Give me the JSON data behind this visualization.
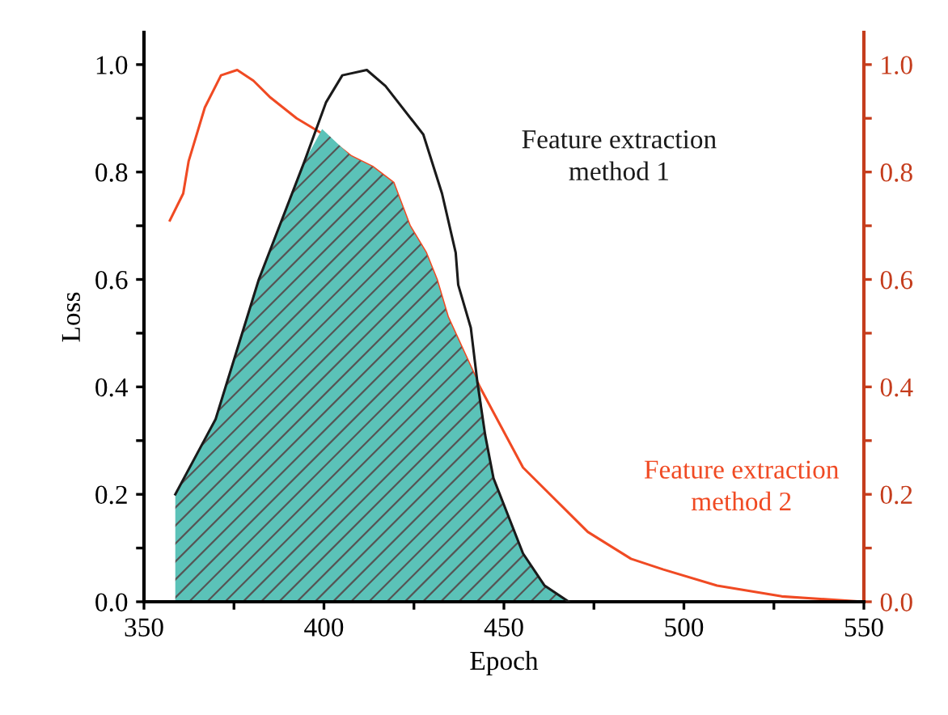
{
  "chart_data": {
    "type": "line",
    "xlabel": "Epoch",
    "ylabel": "Loss",
    "xlim": [
      350,
      550
    ],
    "xticks": [
      350,
      {
        "value": 375,
        "label": null
      },
      400,
      {
        "value": 425,
        "label": null
      },
      450,
      {
        "value": 475,
        "label": null
      },
      500,
      {
        "value": 525,
        "label": null
      },
      550
    ],
    "ylim": [
      0,
      1.06
    ],
    "yticks": [
      {
        "value": 0,
        "label": "0.0"
      },
      {
        "value": 0.1,
        "label": null
      },
      {
        "value": 0.2,
        "label": "0.2"
      },
      {
        "value": 0.3,
        "label": null
      },
      {
        "value": 0.4,
        "label": "0.4"
      },
      {
        "value": 0.5,
        "label": null
      },
      {
        "value": 0.6,
        "label": "0.6"
      },
      {
        "value": 0.7,
        "label": null
      },
      {
        "value": 0.8,
        "label": "0.8"
      },
      {
        "value": 0.9,
        "label": null
      },
      {
        "value": 1,
        "label": "1.0"
      }
    ],
    "y2lim": [
      0,
      1.06
    ],
    "y2ticks": [
      {
        "value": 0,
        "label": "0.0"
      },
      {
        "value": 0.1,
        "label": null
      },
      {
        "value": 0.2,
        "label": "0.2"
      },
      {
        "value": 0.3,
        "label": null
      },
      {
        "value": 0.4,
        "label": "0.4"
      },
      {
        "value": 0.5,
        "label": null
      },
      {
        "value": 0.6,
        "label": "0.6"
      },
      {
        "value": 0.7,
        "label": null
      },
      {
        "value": 0.8,
        "label": "0.8"
      },
      {
        "value": 0.9,
        "label": null
      },
      {
        "value": 1,
        "label": "1.0"
      }
    ],
    "grid": false,
    "marker": "none",
    "line_style": "solid",
    "series": [
      {
        "type": "area",
        "color": "#5bc2b8",
        "x": [
          358.7,
          369.9,
          381.9,
          394.6,
          399.5,
          407.4,
          413.4,
          419.3,
          423.8,
          428.3,
          431.3,
          434.4,
          443.3,
          444.8,
          447.1,
          455.3,
          461.3,
          468
        ],
        "values": [
          0.2,
          0.34,
          0.6,
          0.82,
          0.88,
          0.83,
          0.81,
          0.78,
          0.7,
          0.65,
          0.6,
          0.53,
          0.4,
          0.31,
          0.23,
          0.09,
          0.03,
          0
        ]
      },
      {
        "name": "Feature extraction\nmethod 1",
        "color": "#1a1a1a",
        "x": [
          358.7,
          369.9,
          381.9,
          394.6,
          400.6,
          405.1,
          411.9,
          417.1,
          427.6,
          432.8,
          436.6,
          437.3,
          440.8,
          442.6,
          444.8,
          447.1,
          455.3,
          461.3,
          468
        ],
        "values": [
          0.2,
          0.34,
          0.6,
          0.82,
          0.93,
          0.98,
          0.99,
          0.96,
          0.87,
          0.76,
          0.65,
          0.59,
          0.51,
          0.41,
          0.31,
          0.23,
          0.09,
          0.03,
          0
        ]
      },
      {
        "name": "Feature extraction\nmethod 2",
        "color": "#f04a23",
        "axis": "y2",
        "x": [
          357.2,
          360.9,
          362.4,
          366.9,
          371.4,
          375.9,
          380.4,
          384.9,
          392.4,
          399.9,
          407.4,
          413.4,
          419.3,
          423.8,
          428.3,
          431.3,
          434.4,
          443.3,
          455.3,
          473.3,
          485.3,
          494.3,
          509.2,
          527.2,
          549.7
        ],
        "values": [
          0.71,
          0.76,
          0.82,
          0.92,
          0.98,
          0.99,
          0.97,
          0.94,
          0.9,
          0.87,
          0.83,
          0.81,
          0.78,
          0.7,
          0.65,
          0.6,
          0.53,
          0.4,
          0.25,
          0.13,
          0.08,
          0.06,
          0.03,
          0.01,
          0.0
        ]
      }
    ]
  }
}
